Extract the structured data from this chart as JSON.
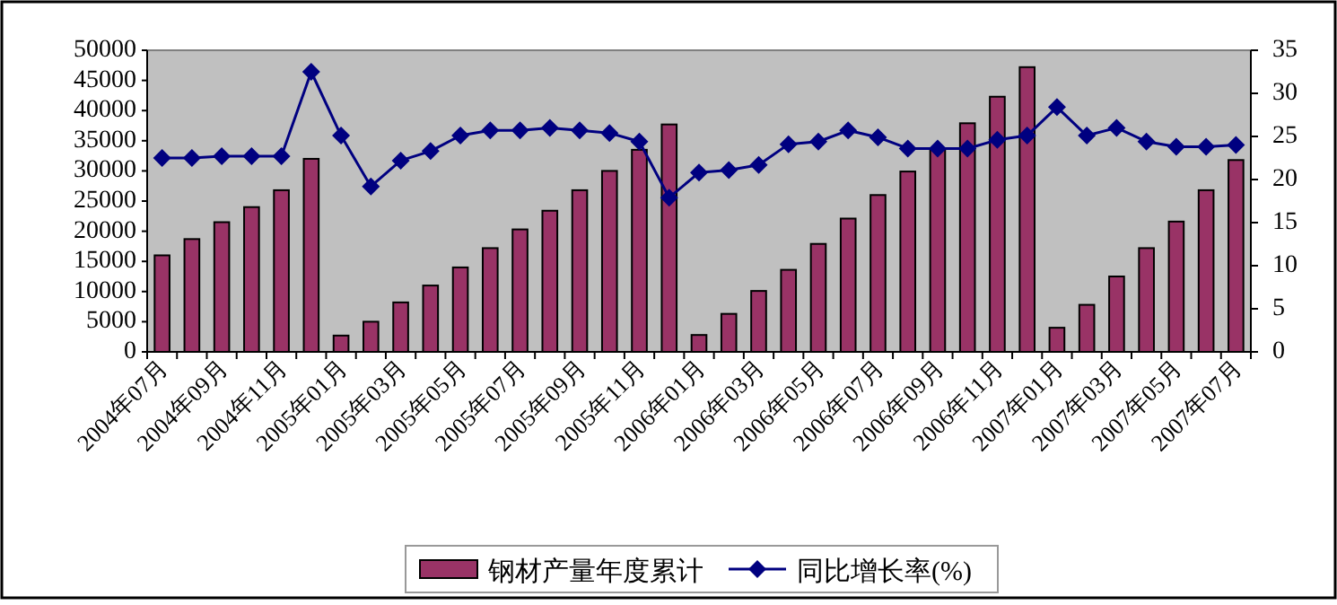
{
  "chart_data": {
    "type": "bar",
    "categories": [
      "2004年07月",
      null,
      "2004年09月",
      null,
      "2004年11月",
      null,
      "2005年01月",
      null,
      "2005年03月",
      null,
      "2005年05月",
      null,
      "2005年07月",
      null,
      "2005年09月",
      null,
      "2005年11月",
      null,
      "2006年01月",
      null,
      "2006年03月",
      null,
      "2006年05月",
      null,
      "2006年07月",
      null,
      "2006年09月",
      null,
      "2006年11月",
      null,
      "2007年01月",
      null,
      "2007年03月",
      null,
      "2007年05月",
      null,
      "2007年07月"
    ],
    "series": [
      {
        "name": "钢材产量年度累计",
        "type": "bar",
        "color": "#993366",
        "values": [
          16000,
          18700,
          21500,
          24000,
          26800,
          32000,
          2700,
          5000,
          8200,
          11000,
          14000,
          17200,
          20300,
          23400,
          26800,
          30000,
          33500,
          37700,
          2800,
          6300,
          10100,
          13600,
          17900,
          22100,
          26000,
          29900,
          33500,
          37900,
          42300,
          47200,
          4000,
          7800,
          12500,
          17200,
          21600,
          26800,
          31800
        ]
      },
      {
        "name": "同比增长率(%)",
        "type": "line",
        "axis": "y2",
        "color": "#000080",
        "marker": "diamond",
        "values": [
          22.5,
          22.5,
          22.7,
          22.7,
          22.7,
          32.5,
          25.1,
          19.2,
          22.2,
          23.3,
          25.1,
          25.7,
          25.7,
          26.0,
          25.7,
          25.4,
          24.4,
          17.9,
          20.8,
          21.1,
          21.7,
          24.1,
          24.4,
          25.7,
          24.9,
          23.6,
          23.6,
          23.6,
          24.6,
          25.1,
          28.4,
          25.1,
          26.0,
          24.4,
          23.8,
          23.8,
          24.0
        ]
      }
    ],
    "ylim": [
      0,
      50000
    ],
    "yticks": [
      0,
      5000,
      10000,
      15000,
      20000,
      25000,
      30000,
      35000,
      40000,
      45000,
      50000
    ],
    "y2lim": [
      0,
      35
    ],
    "y2ticks": [
      0,
      5,
      10,
      15,
      20,
      25,
      30,
      35
    ],
    "grid": false,
    "legend": "bottom"
  }
}
